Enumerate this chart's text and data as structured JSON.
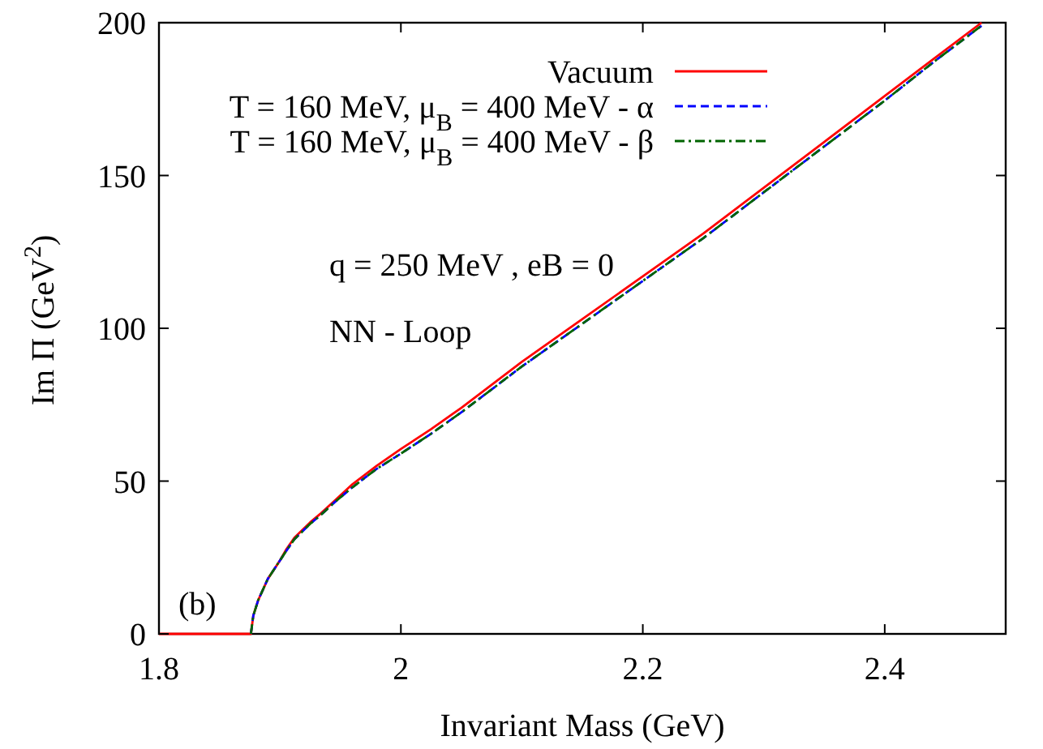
{
  "chart_data": {
    "type": "line",
    "xlabel": "Invariant Mass (GeV)",
    "ylabel": "Im Π (GeV$^{2}$)",
    "annotations": [
      "q = 250 MeV , eB = 0",
      "NN - Loop",
      "(b)"
    ],
    "x": [
      1.8,
      1.876,
      1.878,
      1.882,
      1.89,
      1.9,
      1.905,
      1.912,
      1.925,
      1.934,
      1.945,
      1.96,
      1.98,
      2.0,
      2.025,
      2.05,
      2.1,
      2.15,
      2.2,
      2.25,
      2.3,
      2.35,
      2.4,
      2.44,
      2.48
    ],
    "series": [
      {
        "name": "Vacuum",
        "color": "#ff0000",
        "line_style": "solid",
        "values": [
          0,
          0,
          6,
          11,
          18,
          24,
          27.5,
          31.5,
          36.5,
          39.5,
          43.5,
          49,
          55,
          60.5,
          67,
          74,
          89,
          103,
          117,
          131,
          146,
          161,
          176,
          188,
          200
        ]
      },
      {
        "name": "T = 160 MeV, μ$_{B}$ = 400 MeV - α",
        "color": "#0000ff",
        "line_style": "dashed",
        "values": [
          null,
          0,
          6,
          11,
          18,
          24,
          27,
          31,
          36,
          39,
          43,
          48,
          54,
          59,
          65.5,
          72.5,
          87.5,
          101.5,
          115.5,
          129.5,
          144.5,
          159.5,
          174.5,
          187,
          199
        ]
      },
      {
        "name": "T = 160 MeV, μ$_{B}$ = 400 MeV - β",
        "color": "#006400",
        "line_style": "dashdot",
        "values": [
          null,
          0,
          6,
          11,
          18,
          24,
          27,
          31,
          36,
          39,
          43,
          48,
          54,
          59,
          65.5,
          72.5,
          87.5,
          101.5,
          115.5,
          129.5,
          144.5,
          159.5,
          174.5,
          187,
          199
        ]
      }
    ],
    "xlim": [
      1.8,
      2.5
    ],
    "ylim": [
      0,
      200
    ],
    "xticks": [
      1.8,
      2,
      2.2,
      2.4
    ],
    "yticks": [
      0,
      50,
      100,
      150,
      200
    ],
    "grid": false,
    "legend": "top"
  }
}
